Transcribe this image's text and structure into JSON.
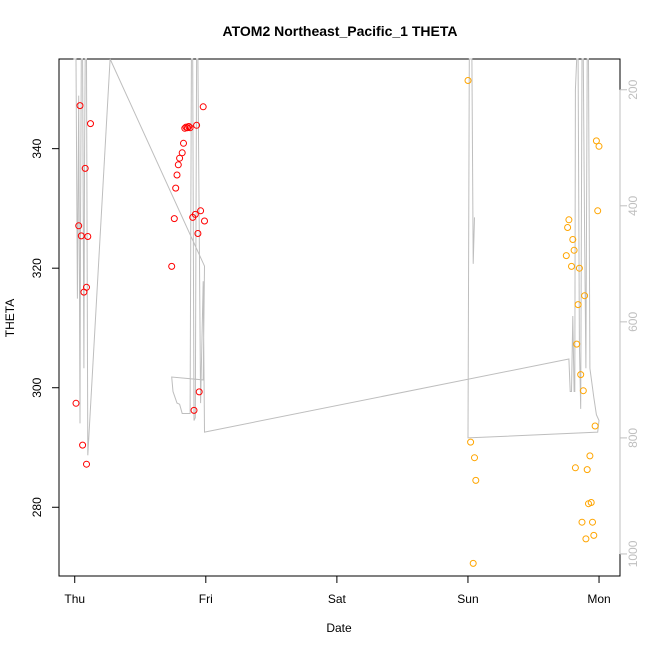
{
  "chart_data": {
    "type": "scatter",
    "title": "ATOM2 Northeast_Pacific_1 THETA",
    "xlabel": "Date",
    "ylabel": "THETA",
    "x_ticks": [
      "Thu",
      "Fri",
      "Sat",
      "Sun",
      "Mon"
    ],
    "x_tick_values": [
      0,
      1,
      2,
      3,
      4
    ],
    "xlim": [
      -0.12,
      4.16
    ],
    "y_ticks": [
      280,
      300,
      320,
      340
    ],
    "ylim": [
      268.5,
      355
    ],
    "y2_ticks": [
      200,
      400,
      600,
      800,
      1000
    ],
    "y2lim": [
      1038,
      147
    ],
    "colors": {
      "red": "#ff0000",
      "orange": "#ffa500",
      "gray_line": "#bebebe",
      "right_axis": "#bfbfbf"
    },
    "series": [
      {
        "color": "red",
        "points": [
          [
            0.01,
            297.4
          ],
          [
            0.03,
            327.1
          ],
          [
            0.04,
            347.2
          ],
          [
            0.05,
            325.4
          ],
          [
            0.06,
            290.4
          ],
          [
            0.07,
            316.0
          ],
          [
            0.08,
            336.7
          ],
          [
            0.09,
            316.8
          ],
          [
            0.09,
            287.2
          ],
          [
            0.1,
            325.3
          ],
          [
            0.12,
            344.2
          ],
          [
            0.74,
            320.3
          ],
          [
            0.76,
            328.3
          ],
          [
            0.77,
            333.4
          ],
          [
            0.78,
            335.6
          ],
          [
            0.79,
            337.3
          ],
          [
            0.8,
            338.4
          ],
          [
            0.82,
            339.3
          ],
          [
            0.83,
            340.9
          ],
          [
            0.84,
            343.4
          ],
          [
            0.85,
            343.6
          ],
          [
            0.86,
            343.5
          ],
          [
            0.87,
            343.7
          ],
          [
            0.88,
            343.5
          ],
          [
            0.9,
            328.5
          ],
          [
            0.91,
            296.2
          ],
          [
            0.92,
            329.0
          ],
          [
            0.93,
            343.9
          ],
          [
            0.94,
            325.8
          ],
          [
            0.95,
            299.3
          ],
          [
            0.96,
            329.6
          ],
          [
            0.98,
            347.0
          ],
          [
            0.99,
            327.9
          ]
        ]
      },
      {
        "color": "orange",
        "points": [
          [
            3.0,
            351.4
          ],
          [
            3.02,
            290.9
          ],
          [
            3.04,
            270.6
          ],
          [
            3.05,
            288.3
          ],
          [
            3.06,
            284.5
          ],
          [
            3.75,
            322.1
          ],
          [
            3.76,
            326.8
          ],
          [
            3.77,
            328.1
          ],
          [
            3.79,
            320.3
          ],
          [
            3.8,
            324.8
          ],
          [
            3.81,
            323.0
          ],
          [
            3.82,
            286.6
          ],
          [
            3.83,
            307.3
          ],
          [
            3.84,
            313.9
          ],
          [
            3.85,
            320.0
          ],
          [
            3.86,
            302.2
          ],
          [
            3.87,
            277.5
          ],
          [
            3.88,
            299.5
          ],
          [
            3.89,
            315.4
          ],
          [
            3.9,
            274.7
          ],
          [
            3.91,
            286.3
          ],
          [
            3.92,
            280.6
          ],
          [
            3.93,
            288.6
          ],
          [
            3.94,
            280.8
          ],
          [
            3.95,
            277.5
          ],
          [
            3.96,
            275.3
          ],
          [
            3.97,
            293.6
          ],
          [
            3.98,
            341.3
          ],
          [
            3.99,
            329.6
          ],
          [
            4.0,
            340.4
          ]
        ]
      }
    ],
    "depth_line_y2": [
      [
        -0.01,
        140
      ],
      [
        0.01,
        140
      ],
      [
        0.02,
        560
      ],
      [
        0.03,
        210
      ],
      [
        0.04,
        775
      ],
      [
        0.045,
        400
      ],
      [
        0.05,
        140
      ],
      [
        0.06,
        140
      ],
      [
        0.07,
        680
      ],
      [
        0.075,
        300
      ],
      [
        0.08,
        140
      ],
      [
        0.09,
        140
      ],
      [
        0.1,
        830
      ],
      [
        0.27,
        140
      ],
      [
        0.99,
        504
      ],
      [
        0.98,
        700
      ],
      [
        0.74,
        695
      ],
      [
        0.75,
        720
      ],
      [
        0.78,
        740
      ],
      [
        0.8,
        742
      ],
      [
        0.82,
        758
      ],
      [
        0.85,
        758
      ],
      [
        0.88,
        758
      ],
      [
        0.89,
        140
      ],
      [
        0.9,
        140
      ],
      [
        0.91,
        770
      ],
      [
        0.92,
        765
      ],
      [
        0.93,
        140
      ],
      [
        0.94,
        140
      ],
      [
        0.96,
        740
      ],
      [
        0.98,
        530
      ],
      [
        0.99,
        790
      ],
      [
        3.77,
        664
      ],
      [
        3.78,
        720
      ],
      [
        3.79,
        720
      ],
      [
        3.8,
        590
      ],
      [
        3.81,
        720
      ],
      [
        3.815,
        720
      ],
      [
        3.82,
        200
      ],
      [
        3.83,
        140
      ],
      [
        3.84,
        140
      ],
      [
        3.85,
        640
      ],
      [
        3.86,
        750
      ],
      [
        3.87,
        140
      ],
      [
        3.88,
        140
      ],
      [
        3.89,
        450
      ],
      [
        3.9,
        680
      ],
      [
        3.91,
        140
      ],
      [
        3.92,
        140
      ],
      [
        3.93,
        680
      ],
      [
        3.96,
        730
      ],
      [
        3.98,
        760
      ],
      [
        4.0,
        770
      ],
      [
        3.99,
        790
      ],
      [
        3.0,
        800
      ],
      [
        3.01,
        140
      ],
      [
        3.03,
        140
      ],
      [
        3.04,
        500
      ],
      [
        3.05,
        420
      ]
    ]
  }
}
